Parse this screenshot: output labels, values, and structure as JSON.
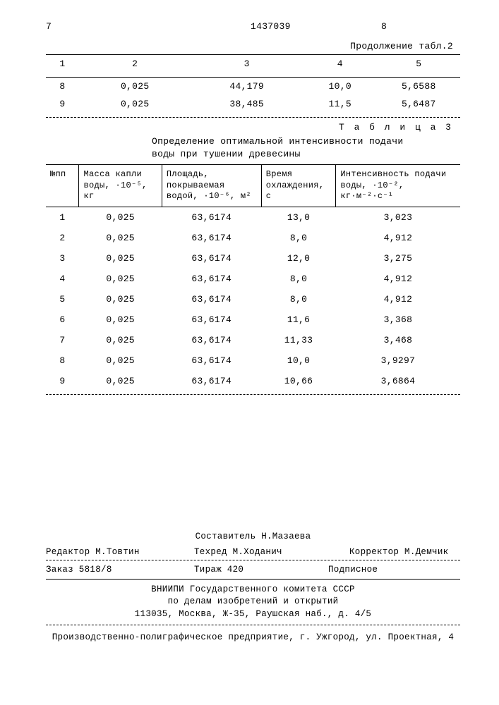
{
  "header": {
    "page_left": "7",
    "doc_number": "1437039",
    "page_right": "8",
    "continuation": "Продолжение табл.2"
  },
  "table2": {
    "headers": [
      "1",
      "2",
      "3",
      "4",
      "5"
    ],
    "rows": [
      [
        "8",
        "0,025",
        "44,179",
        "10,0",
        "5,6588"
      ],
      [
        "9",
        "0,025",
        "38,485",
        "11,5",
        "5,6487"
      ]
    ]
  },
  "table3": {
    "caption": "Т а б л и ц а 3",
    "title_line1": "Определение оптимальной интенсивности подачи",
    "title_line2": "воды при тушении древесины",
    "columns": [
      "№пп",
      "Масса капли воды, ·10⁻⁵, кг",
      "Площадь, покрываемая водой, ·10⁻⁶, м²",
      "Время охлаждения, с",
      "Интенсивность подачи воды, ·10⁻², кг·м⁻²·с⁻¹"
    ],
    "rows": [
      [
        "1",
        "0,025",
        "63,6174",
        "13,0",
        "3,023"
      ],
      [
        "2",
        "0,025",
        "63,6174",
        "8,0",
        "4,912"
      ],
      [
        "3",
        "0,025",
        "63,6174",
        "12,0",
        "3,275"
      ],
      [
        "4",
        "0,025",
        "63,6174",
        "8,0",
        "4,912"
      ],
      [
        "5",
        "0,025",
        "63,6174",
        "8,0",
        "4,912"
      ],
      [
        "6",
        "0,025",
        "63,6174",
        "11,6",
        "3,368"
      ],
      [
        "7",
        "0,025",
        "63,6174",
        "11,33",
        "3,468"
      ],
      [
        "8",
        "0,025",
        "63,6174",
        "10,0",
        "3,9297"
      ],
      [
        "9",
        "0,025",
        "63,6174",
        "10,66",
        "3,6864"
      ]
    ]
  },
  "footer": {
    "composer": "Составитель Н.Мазаева",
    "editor": "Редактор М.Товтин",
    "techred": "Техред М.Ходанич",
    "corrector": "Корректор М.Демчик",
    "order": "Заказ 5818/8",
    "tirazh": "Тираж 420",
    "subscription": "Подписное",
    "org_line1": "ВНИИПИ Государственного комитета СССР",
    "org_line2": "по делам изобретений и открытий",
    "org_line3": "113035, Москва, Ж-35, Раушская наб., д. 4/5",
    "bottom": "Производственно-полиграфическое предприятие, г. Ужгород, ул. Проектная, 4"
  }
}
